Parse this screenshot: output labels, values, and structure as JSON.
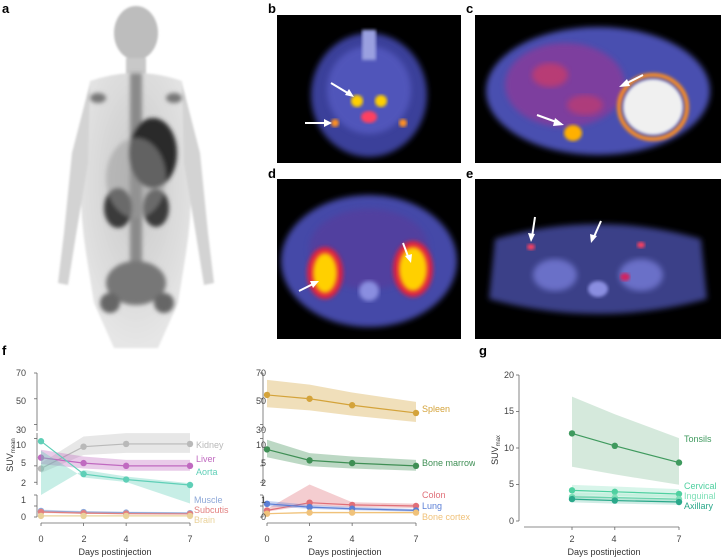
{
  "panel_labels": {
    "a": "a",
    "b": "b",
    "c": "c",
    "d": "d",
    "e": "e",
    "f": "f",
    "g": "g"
  },
  "images": {
    "a": "Whole-body maximum intensity projection (grayscale)",
    "b": "Axial PET/CT, neck level, arrows marking tonsils and cervical lymph nodes",
    "c": "Axial PET/CT, upper abdomen, arrows marking spleen and bone",
    "d": "Axial PET/CT, kidney level, arrows marking kidneys",
    "e": "Axial PET/CT, pelvis level, arrows marking inguinal nodes"
  },
  "colors": {
    "kidney": "#b9b9b9",
    "liver": "#c06ac0",
    "aorta": "#5fcfb7",
    "muscle": "#8ea8d8",
    "subcutis": "#e28080",
    "brain": "#ead29a",
    "spleen": "#d4a33a",
    "bone_marrow": "#3f8f55",
    "colon": "#e06f78",
    "lung": "#5b7fd6",
    "bone_cortex": "#f0c27a",
    "tonsils": "#3f9a5e",
    "cervical": "#4fd0a0",
    "inguinal": "#7fe0b8",
    "axillary": "#2aa88a"
  },
  "chart_data": [
    {
      "type": "line",
      "panel": "f",
      "xlabel": "Days postinjection",
      "ylabel": "SUV",
      "ylabel_sub": "mean",
      "x_ticks": [
        "0",
        "2",
        "4",
        "7"
      ],
      "xlim": [
        0,
        7
      ],
      "y_ticks": [
        "0",
        "1",
        "2",
        "5",
        "10",
        "30",
        "50",
        "70"
      ],
      "broken_axis": true,
      "series": [
        {
          "name": "Kidney",
          "x": [
            0,
            2,
            4,
            7
          ],
          "y": [
            4.5,
            8.5,
            9.0,
            9.0
          ]
        },
        {
          "name": "Liver",
          "x": [
            0,
            2,
            4,
            7
          ],
          "y": [
            6.5,
            5.5,
            5.0,
            5.0
          ]
        },
        {
          "name": "Aorta",
          "x": [
            0,
            2,
            4,
            7
          ],
          "y": [
            9.5,
            3.5,
            2.5,
            1.5
          ]
        },
        {
          "name": "Muscle",
          "x": [
            0,
            2,
            4,
            7
          ],
          "y": [
            0.55,
            0.45,
            0.4,
            0.35
          ]
        },
        {
          "name": "Subcutis",
          "x": [
            0,
            2,
            4,
            7
          ],
          "y": [
            0.45,
            0.35,
            0.3,
            0.28
          ]
        },
        {
          "name": "Brain",
          "x": [
            0,
            2,
            4,
            7
          ],
          "y": [
            0.1,
            0.1,
            0.1,
            0.1
          ]
        }
      ]
    },
    {
      "type": "line",
      "panel": "f",
      "xlabel": "Days postinjection",
      "x_ticks": [
        "0",
        "2",
        "4",
        "7"
      ],
      "xlim": [
        0,
        7
      ],
      "broken_axis": true,
      "series": [
        {
          "name": "Spleen",
          "x": [
            0,
            2,
            4,
            7
          ],
          "y": [
            53,
            50,
            45,
            39
          ]
        },
        {
          "name": "Bone marrow",
          "x": [
            0,
            2,
            4,
            7
          ],
          "y": [
            8,
            6,
            5.5,
            5
          ]
        },
        {
          "name": "Colon",
          "x": [
            0,
            2,
            4,
            7
          ],
          "y": [
            0.6,
            1.3,
            1.1,
            1.0
          ]
        },
        {
          "name": "Lung",
          "x": [
            0,
            2,
            4,
            7
          ],
          "y": [
            1.2,
            0.9,
            0.75,
            0.6
          ]
        },
        {
          "name": "Bone cortex",
          "x": [
            0,
            2,
            4,
            7
          ],
          "y": [
            0.3,
            0.4,
            0.4,
            0.4
          ]
        }
      ]
    },
    {
      "type": "line",
      "panel": "g",
      "xlabel": "Days postinjection",
      "ylabel": "SUV",
      "ylabel_sub": "max",
      "x_ticks": [
        "2",
        "4",
        "7"
      ],
      "xlim": [
        2,
        7
      ],
      "y_ticks": [
        "0",
        "5",
        "10",
        "15",
        "20"
      ],
      "ylim": [
        0,
        20
      ],
      "series": [
        {
          "name": "Tonsils",
          "x": [
            2,
            4,
            7
          ],
          "y": [
            12,
            10.3,
            8
          ]
        },
        {
          "name": "Cervical",
          "x": [
            2,
            4,
            7
          ],
          "y": [
            4.2,
            4.0,
            3.7
          ]
        },
        {
          "name": "Inguinal",
          "x": [
            2,
            4,
            7
          ],
          "y": [
            3.3,
            3.2,
            3.0
          ]
        },
        {
          "name": "Axillary",
          "x": [
            2,
            4,
            7
          ],
          "y": [
            3.0,
            2.8,
            2.6
          ]
        }
      ]
    }
  ]
}
